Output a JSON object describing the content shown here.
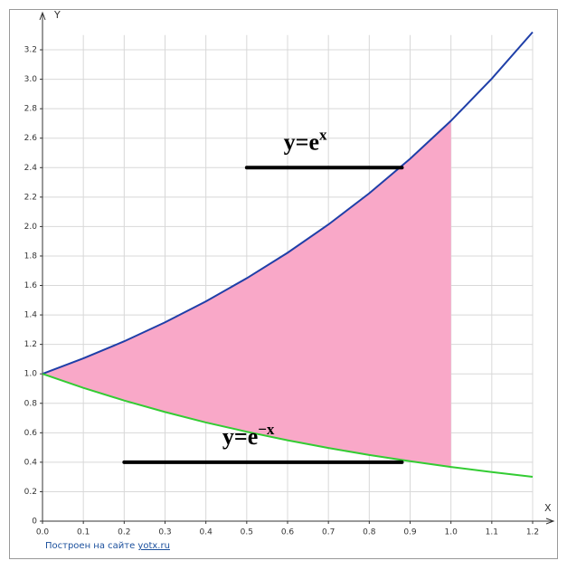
{
  "chart_data": {
    "type": "line",
    "x_label": "X",
    "y_label": "Y",
    "x": [
      0,
      0.1,
      0.2,
      0.3,
      0.4,
      0.5,
      0.6,
      0.7,
      0.8,
      0.9,
      1.0,
      1.1,
      1.2
    ],
    "series": [
      {
        "name": "y=e^x",
        "color": "#1f3fa8",
        "values": [
          1,
          1.105,
          1.221,
          1.35,
          1.492,
          1.649,
          1.822,
          2.014,
          2.226,
          2.46,
          2.718,
          3.004,
          3.32
        ]
      },
      {
        "name": "y=e^-x",
        "color": "#33cc33",
        "values": [
          1,
          0.905,
          0.819,
          0.741,
          0.67,
          0.607,
          0.549,
          0.497,
          0.449,
          0.407,
          0.368,
          0.333,
          0.301
        ]
      }
    ],
    "fill_between": {
      "x": [
        0,
        1.0
      ],
      "color": "#f9a8c8"
    },
    "annotations": [
      {
        "text": "y=e",
        "sup": "x",
        "line": {
          "x": [
            0.5,
            0.88
          ],
          "y": 2.4
        }
      },
      {
        "text": "y=e",
        "sup": "−x",
        "line": {
          "x": [
            0.2,
            0.88
          ],
          "y": 0.4
        }
      }
    ],
    "xlim": [
      0,
      1.2
    ],
    "ylim": [
      0,
      3.3
    ],
    "xticks": [
      {
        "value": 0,
        "label": "0.0"
      },
      0.1,
      0.2,
      0.3,
      0.4,
      0.5,
      0.6,
      0.7,
      0.8,
      0.9,
      {
        "value": 1.0,
        "label": "1.0"
      },
      1.1,
      1.2
    ],
    "yticks": [
      0,
      0.2,
      0.4,
      0.6,
      0.8,
      {
        "value": 1.0,
        "label": "1.0"
      },
      1.2,
      1.4,
      1.6,
      1.8,
      {
        "value": 2.0,
        "label": "2.0"
      },
      2.2,
      2.4,
      2.6,
      2.8,
      {
        "value": 3.0,
        "label": "3.0"
      },
      3.2
    ],
    "grid": true,
    "footer": {
      "text": "Построен на сайте ",
      "link": "yotx.ru"
    }
  }
}
